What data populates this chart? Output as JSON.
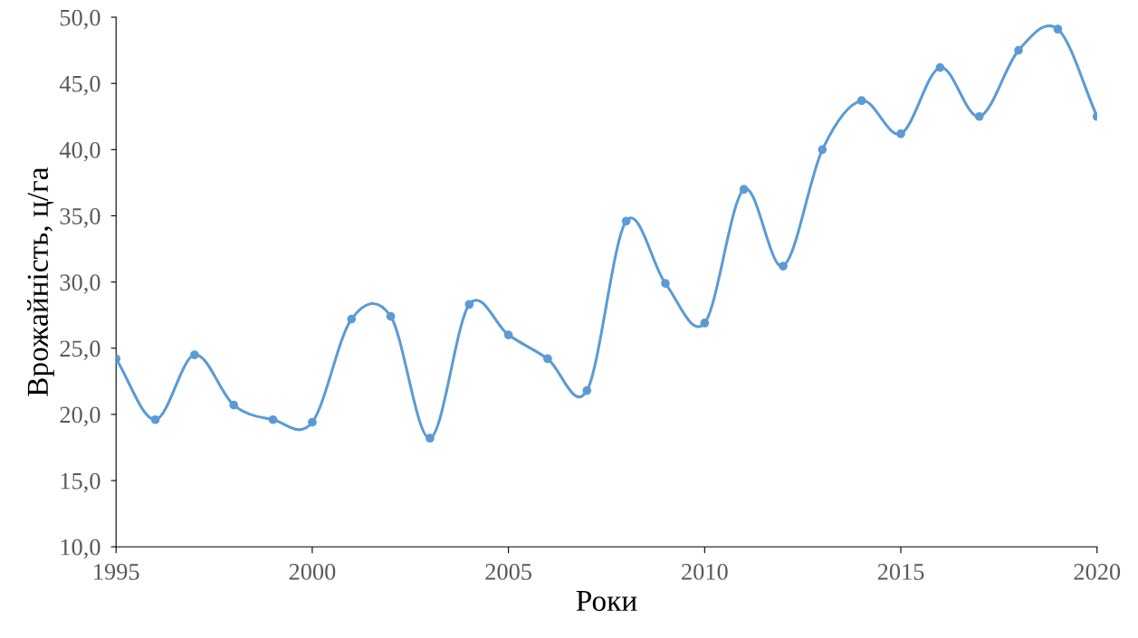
{
  "chart_data": {
    "type": "line",
    "xlabel": "Роки",
    "ylabel": "Врожайність, ц/га",
    "x": [
      1995,
      1996,
      1997,
      1998,
      1999,
      2000,
      2001,
      2002,
      2003,
      2004,
      2005,
      2006,
      2007,
      2008,
      2009,
      2010,
      2011,
      2012,
      2013,
      2014,
      2015,
      2016,
      2017,
      2018,
      2019,
      2020
    ],
    "series": [
      {
        "color": "#5b9bd5",
        "values": [
          24.2,
          19.6,
          24.5,
          20.7,
          19.6,
          19.4,
          27.2,
          27.4,
          18.2,
          28.3,
          26.0,
          24.2,
          21.8,
          34.6,
          29.9,
          26.9,
          37.0,
          31.2,
          40.0,
          43.7,
          41.2,
          46.2,
          42.5,
          47.5,
          49.1,
          42.5
        ]
      }
    ],
    "xlim": [
      1995,
      2020
    ],
    "xticks": [
      1995,
      2000,
      2005,
      2010,
      2015,
      2020
    ],
    "ylim": [
      10,
      50
    ],
    "yticks": [
      {
        "value": 10,
        "label": "10,0"
      },
      {
        "value": 15,
        "label": "15,0"
      },
      {
        "value": 20,
        "label": "20,0"
      },
      {
        "value": 25,
        "label": "25,0"
      },
      {
        "value": 30,
        "label": "30,0"
      },
      {
        "value": 35,
        "label": "35,0"
      },
      {
        "value": 40,
        "label": "40,0"
      },
      {
        "value": 45,
        "label": "45,0"
      },
      {
        "value": 50,
        "label": "50,0"
      }
    ],
    "grid": false,
    "marker": "circle",
    "line_style": "solid",
    "legend": false
  }
}
